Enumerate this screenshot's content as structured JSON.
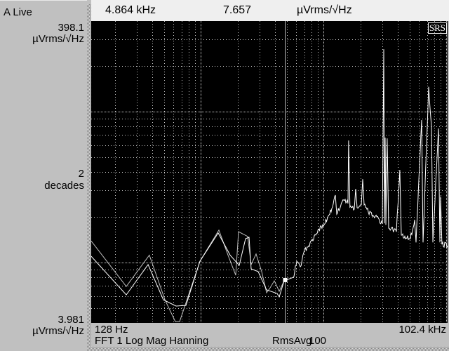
{
  "left_panel": {
    "trace_label": "A Live",
    "y_top_value": "398.1",
    "y_top_unit": "µVrms/√Hz",
    "y_scale_value": "2",
    "y_scale_unit": "decades",
    "y_bottom_value": "3.981",
    "y_bottom_unit": "µVrms/√Hz"
  },
  "top_bar": {
    "marker_x": "4.864 kHz",
    "marker_y": "7.657",
    "marker_unit": "µVrms/√Hz"
  },
  "bottom_bar": {
    "x_start": "128 Hz",
    "x_end": "102.4 kHz",
    "measurement": "FFT 1 Log Mag Hanning",
    "averaging_label": "RmsAvg",
    "averaging_count": "100"
  },
  "logo": "SRS",
  "colors": {
    "plot_bg": "#000000",
    "trace": "#ffffff",
    "grid": "#c8c8c8",
    "panel": "#c0c0c0"
  },
  "chart_data": {
    "type": "line",
    "x_scale": "log",
    "y_scale": "log",
    "xlim": [
      128,
      102400
    ],
    "ylim": [
      3.981,
      398.1
    ],
    "xunit": "Hz",
    "yunit": "µVrms/√Hz",
    "grid": true,
    "marker": {
      "x": 4864,
      "y": 7.657
    },
    "series": [
      {
        "points": [
          [
            128,
            13.9
          ],
          [
            247,
            6.95
          ],
          [
            381,
            11.2
          ],
          [
            510,
            5.66
          ],
          [
            621,
            4.06
          ],
          [
            672,
            4.06
          ],
          [
            984,
            10.2
          ],
          [
            1404,
            16.4
          ],
          [
            1665,
            11.2
          ],
          [
            1924,
            8.24
          ],
          [
            2029,
            16.0
          ],
          [
            2407,
            14.9
          ],
          [
            2571,
            9.69
          ],
          [
            2819,
            11.4
          ],
          [
            3132,
            8.71
          ],
          [
            3434,
            6.31
          ],
          [
            3667,
            6.8
          ],
          [
            3968,
            7.57
          ],
          [
            4350,
            6.45
          ],
          [
            4770,
            7.57
          ]
        ]
      },
      {
        "points": [
          [
            128,
            11.0
          ],
          [
            247,
            6.11
          ],
          [
            372,
            9.69
          ],
          [
            496,
            5.66
          ],
          [
            629,
            5.15
          ],
          [
            756,
            5.2
          ],
          [
            984,
            10.2
          ],
          [
            1385,
            15.7
          ],
          [
            1732,
            11.2
          ],
          [
            2056,
            9.58
          ],
          [
            2314,
            14.4
          ],
          [
            2472,
            14.7
          ],
          [
            2571,
            9.08
          ],
          [
            2933,
            8.71
          ],
          [
            3434,
            6.59
          ],
          [
            4183,
            6.24
          ],
          [
            4350,
            5.92
          ],
          [
            4770,
            7.57
          ],
          [
            5660,
            7.98
          ],
          [
            6047,
            10.2
          ],
          [
            6458,
            9.38
          ],
          [
            6897,
            11.6
          ],
          [
            7561,
            12.9
          ],
          [
            8627,
            15.2
          ],
          [
            9837,
            17.8
          ],
          [
            11220,
            20.9
          ],
          [
            12470,
            28.0
          ],
          [
            12800,
            20.9
          ],
          [
            14600,
            25.9
          ],
          [
            15800,
            24.6
          ],
          [
            16000,
            64.4
          ],
          [
            16400,
            23.3
          ],
          [
            17790,
            22.6
          ],
          [
            18260,
            30.8
          ],
          [
            18750,
            23.1
          ],
          [
            20290,
            24.1
          ],
          [
            20830,
            35.7
          ],
          [
            21380,
            24.1
          ],
          [
            23140,
            21.6
          ],
          [
            26390,
            20.3
          ],
          [
            30100,
            18.2
          ],
          [
            30920,
            259
          ],
          [
            31330,
            18.2
          ],
          [
            31740,
            67.3
          ],
          [
            32160,
            17.8
          ],
          [
            33000,
            66.5
          ],
          [
            33900,
            16.9
          ],
          [
            39170,
            16.0
          ],
          [
            41820,
            41.1
          ],
          [
            42940,
            15.2
          ],
          [
            50960,
            14.4
          ],
          [
            55150,
            19.2
          ],
          [
            56620,
            13.6
          ],
          [
            62900,
            87.9
          ],
          [
            64580,
            13.6
          ],
          [
            71760,
            146
          ],
          [
            73670,
            105
          ],
          [
            75630,
            79.8
          ],
          [
            77650,
            13.6
          ],
          [
            86270,
            77.3
          ],
          [
            88560,
            13.6
          ],
          [
            89750,
            27.4
          ],
          [
            92100,
            13.2
          ],
          [
            102400,
            12.9
          ]
        ]
      }
    ]
  }
}
